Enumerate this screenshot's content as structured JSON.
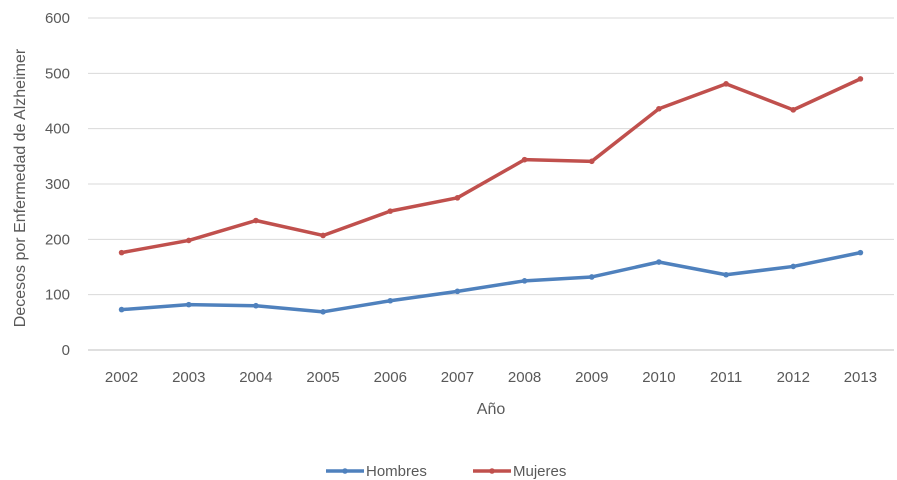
{
  "chart_data": {
    "type": "line",
    "xlabel": "Año",
    "ylabel": "Decesos por Enfermedad de Alzheimer",
    "categories": [
      "2002",
      "2003",
      "2004",
      "2005",
      "2006",
      "2007",
      "2008",
      "2009",
      "2010",
      "2011",
      "2012",
      "2013"
    ],
    "ylim": [
      0,
      600
    ],
    "yticks": [
      "0",
      "100",
      "200",
      "300",
      "400",
      "500",
      "600"
    ],
    "grid": true,
    "legend_position": "bottom",
    "series": [
      {
        "name": "Hombres",
        "color": "#4f81bd",
        "values": [
          73,
          82,
          80,
          69,
          89,
          106,
          125,
          132,
          159,
          136,
          151,
          176
        ]
      },
      {
        "name": "Mujeres",
        "color": "#c0504d",
        "values": [
          176,
          198,
          234,
          207,
          251,
          275,
          344,
          341,
          436,
          481,
          434,
          490
        ]
      }
    ]
  }
}
